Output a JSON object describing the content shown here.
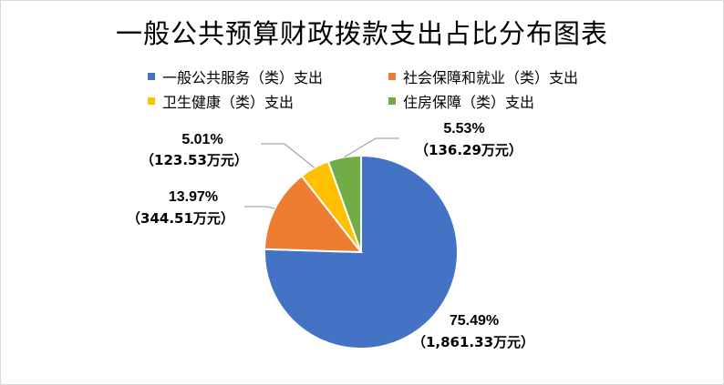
{
  "title": "一般公共预算财政拨款支出占比分布图表",
  "chart_data": {
    "type": "pie",
    "title": "一般公共预算财政拨款支出占比分布图表",
    "legend_position": "top",
    "slices": [
      {
        "name": "一般公共服务（类）支出",
        "percent": 75.49,
        "percent_label": "75.49%",
        "amount_label": "（1,861.33万元）",
        "color": "#4472C4"
      },
      {
        "name": "社会保障和就业（类）支出",
        "percent": 13.97,
        "percent_label": "13.97%",
        "amount_label": "（344.51万元）",
        "color": "#ED7D31"
      },
      {
        "name": "卫生健康（类）支出",
        "percent": 5.01,
        "percent_label": "5.01%",
        "amount_label": "（123.53万元）",
        "color": "#FFC000"
      },
      {
        "name": "住房保障（类）支出",
        "percent": 5.53,
        "percent_label": "5.53%",
        "amount_label": "（136.29万元）",
        "color": "#70AD47"
      }
    ]
  }
}
